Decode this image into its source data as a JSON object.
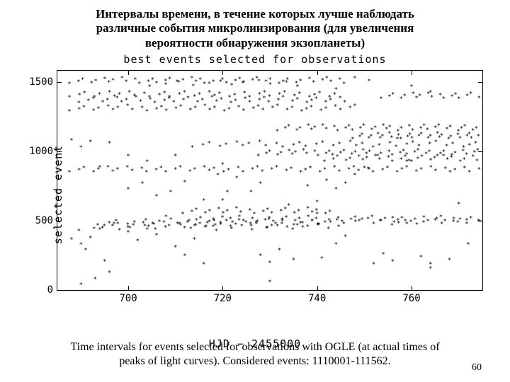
{
  "title_ru_l1": "Интервалы времени, в течение которых  лучше наблюдать",
  "title_ru_l2": "различные события микролинзирования (для увеличения",
  "title_ru_l3": "вероятности обнаружения экзопланеты)",
  "chart": {
    "type": "scatter",
    "title": "best events selected for observations",
    "xlabel": "HJD − 2455000",
    "ylabel": "selected event",
    "xlim": [
      685,
      775
    ],
    "ylim": [
      0,
      1580
    ],
    "xticks": [
      700,
      720,
      740,
      760
    ],
    "yticks": [
      0,
      500,
      1000,
      1500
    ],
    "marker": "*",
    "marker_color": "#000000",
    "background_color": "#ffffff",
    "border_color": "#000000",
    "font_family_axes": "monospace",
    "axis_fontsize": 15,
    "tick_fontsize": 14,
    "bands": [
      {
        "y": 1500,
        "xstart": 688,
        "xend": 746,
        "density": 45
      },
      {
        "y": 1480,
        "xstart": 705,
        "xend": 736,
        "density": 12
      },
      {
        "y": 1400,
        "xstart": 688,
        "xend": 744,
        "density": 38
      },
      {
        "y": 1390,
        "xstart": 754,
        "xend": 774,
        "density": 18
      },
      {
        "y": 1360,
        "xstart": 690,
        "xend": 746,
        "density": 40
      },
      {
        "y": 1300,
        "xstart": 688,
        "xend": 748,
        "density": 42
      },
      {
        "y": 1160,
        "xstart": 732,
        "xend": 774,
        "density": 38
      },
      {
        "y": 1100,
        "xstart": 748,
        "xend": 774,
        "density": 30
      },
      {
        "y": 1040,
        "xstart": 714,
        "xend": 774,
        "density": 36
      },
      {
        "y": 980,
        "xstart": 728,
        "xend": 774,
        "density": 42
      },
      {
        "y": 940,
        "xstart": 742,
        "xend": 774,
        "density": 26
      },
      {
        "y": 860,
        "xstart": 688,
        "xend": 774,
        "density": 60
      },
      {
        "y": 560,
        "xstart": 712,
        "xend": 743,
        "density": 24
      },
      {
        "y": 500,
        "xstart": 713,
        "xend": 774,
        "density": 48
      },
      {
        "y": 480,
        "xstart": 694,
        "xend": 774,
        "density": 44
      },
      {
        "y": 460,
        "xstart": 695,
        "xend": 740,
        "density": 30
      },
      {
        "y": 440,
        "xstart": 690,
        "xend": 745,
        "density": 22
      }
    ],
    "scatter_loose": [
      [
        688,
        1070
      ],
      [
        692,
        1060
      ],
      [
        696,
        1050
      ],
      [
        690,
        1020
      ],
      [
        694,
        880
      ],
      [
        688,
        360
      ],
      [
        690,
        320
      ],
      [
        691,
        280
      ],
      [
        692,
        370
      ],
      [
        694,
        430
      ],
      [
        695,
        200
      ],
      [
        696,
        120
      ],
      [
        697,
        470
      ],
      [
        700,
        410
      ],
      [
        702,
        350
      ],
      [
        704,
        430
      ],
      [
        706,
        390
      ],
      [
        708,
        520
      ],
      [
        710,
        300
      ],
      [
        712,
        240
      ],
      [
        714,
        360
      ],
      [
        716,
        180
      ],
      [
        718,
        450
      ],
      [
        706,
        670
      ],
      [
        709,
        700
      ],
      [
        703,
        760
      ],
      [
        712,
        770
      ],
      [
        720,
        640
      ],
      [
        721,
        700
      ],
      [
        726,
        700
      ],
      [
        728,
        760
      ],
      [
        728,
        240
      ],
      [
        730,
        190
      ],
      [
        732,
        280
      ],
      [
        735,
        210
      ],
      [
        738,
        740
      ],
      [
        740,
        630
      ],
      [
        742,
        780
      ],
      [
        744,
        720
      ],
      [
        746,
        760
      ],
      [
        748,
        820
      ],
      [
        750,
        870
      ],
      [
        741,
        220
      ],
      [
        744,
        320
      ],
      [
        746,
        380
      ],
      [
        752,
        180
      ],
      [
        754,
        250
      ],
      [
        756,
        200
      ],
      [
        760,
        920
      ],
      [
        762,
        230
      ],
      [
        764,
        180
      ],
      [
        768,
        210
      ],
      [
        770,
        610
      ],
      [
        772,
        320
      ],
      [
        700,
        720
      ],
      [
        716,
        640
      ],
      [
        719,
        820
      ],
      [
        723,
        800
      ],
      [
        730,
        50
      ],
      [
        734,
        600
      ],
      [
        740,
        540
      ],
      [
        690,
        30
      ],
      [
        693,
        70
      ],
      [
        720,
        900
      ],
      [
        757,
        1080
      ],
      [
        760,
        1460
      ],
      [
        764,
        1420
      ],
      [
        700,
        960
      ],
      [
        704,
        920
      ],
      [
        710,
        960
      ],
      [
        744,
        1440
      ],
      [
        751,
        860
      ],
      [
        759,
        920
      ],
      [
        756,
        510
      ],
      [
        759,
        470
      ],
      [
        748,
        1520
      ],
      [
        751,
        1500
      ],
      [
        764,
        150
      ]
    ]
  },
  "caption_l1": "Time intervals for events selected for observations with OGLE (at actual times of",
  "caption_l2": "peaks of light curves). Considered events: 1110001-111562.",
  "page_number": "60"
}
